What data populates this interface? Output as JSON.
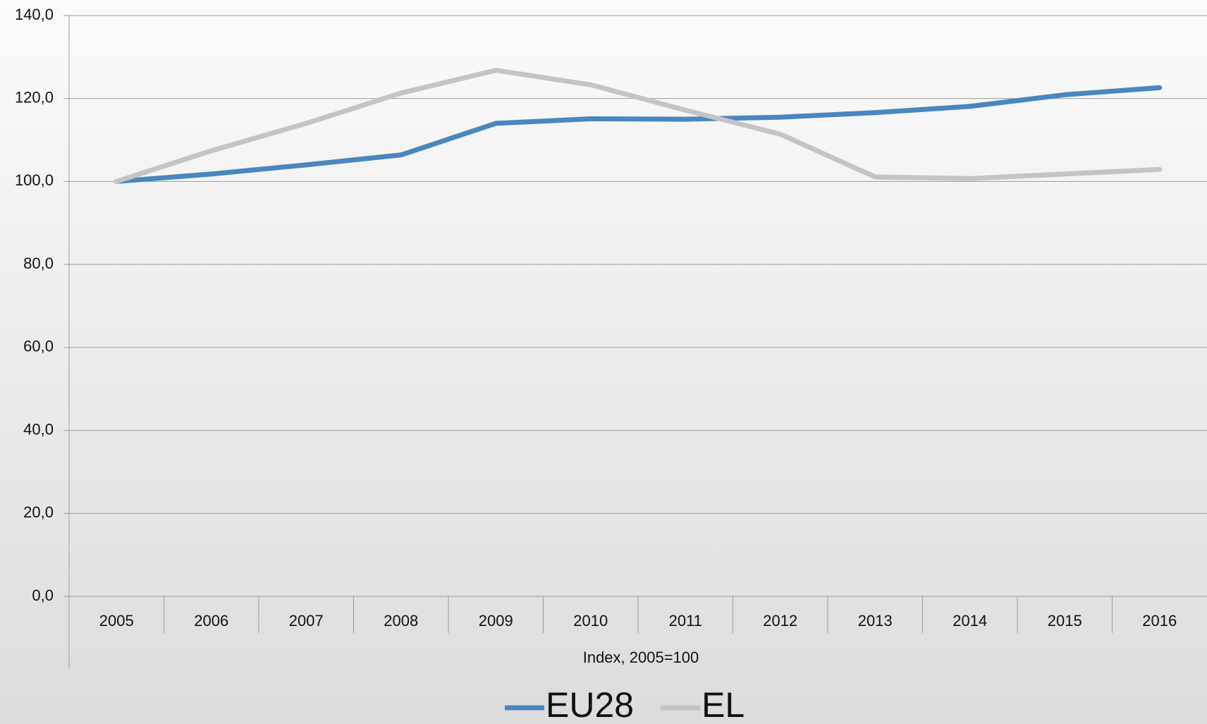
{
  "chart_data": {
    "type": "line",
    "x_label": "Index, 2005=100",
    "categories": [
      "2005",
      "2006",
      "2007",
      "2008",
      "2009",
      "2010",
      "2011",
      "2012",
      "2013",
      "2014",
      "2015",
      "2016"
    ],
    "series": [
      {
        "name": "EU28",
        "color": "#4a86bf",
        "values": [
          100,
          101.8,
          104.0,
          106.4,
          114.0,
          115.1,
          115.0,
          115.5,
          116.6,
          118.1,
          120.9,
          122.6
        ]
      },
      {
        "name": "EL",
        "color": "#c4c4c4",
        "values": [
          100,
          107.4,
          114.0,
          121.3,
          126.8,
          123.3,
          117.2,
          111.4,
          101.1,
          100.7,
          101.8,
          102.9
        ]
      }
    ],
    "ylim": [
      0,
      140
    ],
    "yticks": [
      {
        "value": 0,
        "label": "0,0"
      },
      {
        "value": 20,
        "label": "20,0"
      },
      {
        "value": 40,
        "label": "40,0"
      },
      {
        "value": 60,
        "label": "60,0"
      },
      {
        "value": 80,
        "label": "80,0"
      },
      {
        "value": 100,
        "label": "100,0"
      },
      {
        "value": 120,
        "label": "120,0"
      },
      {
        "value": 140,
        "label": "140,0"
      }
    ],
    "grid": true,
    "legend": "bottom"
  }
}
